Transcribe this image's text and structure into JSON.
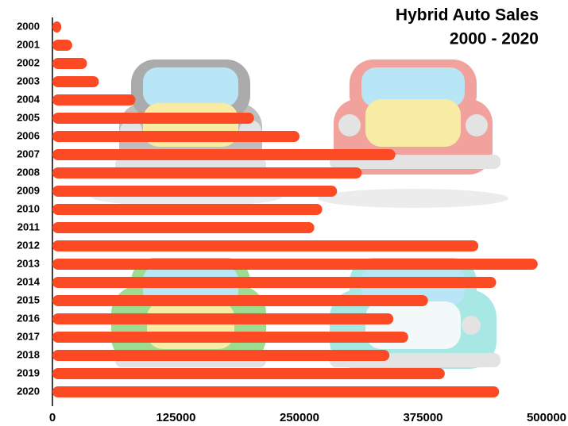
{
  "chart_data": {
    "type": "hbar",
    "title": "Hybrid Auto Sales",
    "subtitle": "2000 - 2020",
    "categories": [
      "2000",
      "2001",
      "2002",
      "2003",
      "2004",
      "2005",
      "2006",
      "2007",
      "2008",
      "2009",
      "2010",
      "2011",
      "2012",
      "2013",
      "2014",
      "2015",
      "2016",
      "2017",
      "2018",
      "2019",
      "2020"
    ],
    "values": [
      9000,
      20000,
      35000,
      47000,
      84000,
      204000,
      250000,
      347000,
      313000,
      288000,
      273000,
      265000,
      431000,
      491000,
      449000,
      380000,
      345000,
      360000,
      341000,
      397000,
      452000
    ],
    "color": "#fc4a25",
    "xlim": [
      0,
      500000
    ],
    "xticks": [
      0,
      125000,
      250000,
      375000,
      500000
    ],
    "grid": false
  }
}
